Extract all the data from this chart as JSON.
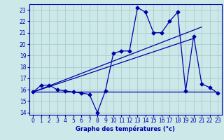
{
  "title": "Graphe des températures (°c)",
  "bg_color": "#cce8e8",
  "grid_color": "#aacccc",
  "line_color": "#0000aa",
  "axis_bg": "#cce8e8",
  "xlim": [
    -0.5,
    23.5
  ],
  "ylim": [
    13.8,
    23.5
  ],
  "yticks": [
    14,
    15,
    16,
    17,
    18,
    19,
    20,
    21,
    22,
    23
  ],
  "xticks": [
    0,
    1,
    2,
    3,
    4,
    5,
    6,
    7,
    8,
    9,
    10,
    11,
    12,
    13,
    14,
    15,
    16,
    17,
    18,
    19,
    20,
    21,
    22,
    23
  ],
  "hourly_temps": [
    15.8,
    16.4,
    16.4,
    16.0,
    15.9,
    15.8,
    15.7,
    15.6,
    14.0,
    15.9,
    19.2,
    19.4,
    19.4,
    23.2,
    22.8,
    21.0,
    21.0,
    22.0,
    22.8,
    15.9,
    20.7,
    16.5,
    16.2,
    15.7
  ],
  "flat_line": {
    "x": [
      0,
      23
    ],
    "y": [
      15.8,
      15.8
    ]
  },
  "trend_mid": {
    "x": [
      0,
      21
    ],
    "y": [
      15.8,
      21.5
    ]
  },
  "trend_top": {
    "x": [
      0,
      20
    ],
    "y": [
      15.8,
      20.5
    ]
  },
  "xlabel_fontsize": 6,
  "tick_fontsize": 5.5,
  "linewidth": 0.9,
  "markersize": 2.5
}
